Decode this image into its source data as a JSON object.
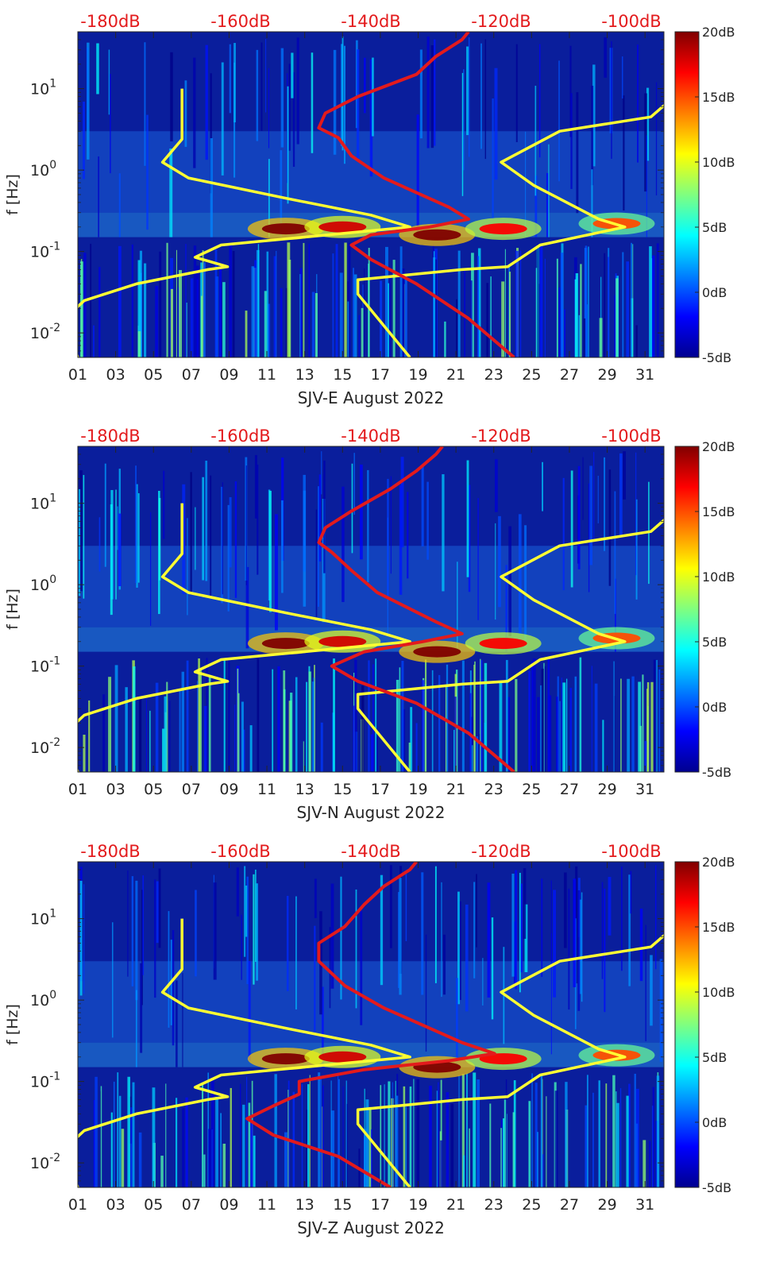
{
  "colors": {
    "noise_model": "#ffff33",
    "psd_curve": "#e31a1c",
    "background_low": "#0a1e9c",
    "db_top_labels": "#e31a1c"
  },
  "chart_data": [
    {
      "type": "heatmap",
      "title": "",
      "xlabel": "SJV-E August 2022",
      "ylabel": "f [Hz]",
      "x_tick_labels": [
        "01",
        "03",
        "05",
        "07",
        "09",
        "11",
        "13",
        "15",
        "17",
        "19",
        "21",
        "23",
        "25",
        "27",
        "29",
        "31"
      ],
      "x_tick_values": [
        1,
        3,
        5,
        7,
        9,
        11,
        13,
        15,
        17,
        19,
        21,
        23,
        25,
        27,
        29,
        31
      ],
      "xlim": [
        1,
        32
      ],
      "y_scale": "log",
      "y_tick_labels": [
        {
          "base": "10",
          "exp": "-2"
        },
        {
          "base": "10",
          "exp": "-1"
        },
        {
          "base": "10",
          "exp": "0"
        },
        {
          "base": "10",
          "exp": "1"
        }
      ],
      "y_tick_values": [
        0.01,
        0.1,
        1,
        10
      ],
      "ylim": [
        0.005,
        50
      ],
      "top_db_labels": [
        "-180dB",
        "-160dB",
        "-140dB",
        "-120dB",
        "-100dB"
      ],
      "top_db_values": [
        -180,
        -160,
        -140,
        -120,
        -100
      ],
      "db_axis_range": [
        -185,
        -95
      ],
      "colorbar": {
        "labels": [
          "20dB",
          "15dB",
          "10dB",
          "5dB",
          "0dB",
          "-5dB"
        ],
        "values": [
          20,
          15,
          10,
          5,
          0,
          -5
        ],
        "range": [
          -5,
          20
        ]
      },
      "series": [
        {
          "name": "noise model (yellow)",
          "points": [
            [
              -185,
              0.005
            ],
            [
              -187,
              0.015
            ],
            [
              -184,
              0.025
            ],
            [
              -176,
              0.04
            ],
            [
              -165,
              0.06
            ],
            [
              -162,
              0.065
            ],
            [
              -167,
              0.085
            ],
            [
              -163,
              0.12
            ],
            [
              -134,
              0.2
            ],
            [
              -140,
              0.28
            ],
            [
              -153,
              0.45
            ],
            [
              -168,
              0.8
            ],
            [
              -172,
              1.25
            ],
            [
              -169,
              2.4
            ],
            [
              -169,
              10
            ]
          ]
        },
        {
          "name": "noise model (yellow, high)",
          "points": [
            [
              -134,
              0.005
            ],
            [
              -142,
              0.03
            ],
            [
              -142,
              0.045
            ],
            [
              -126,
              0.06
            ],
            [
              -119,
              0.065
            ],
            [
              -114,
              0.12
            ],
            [
              -101,
              0.2
            ],
            [
              -105,
              0.25
            ],
            [
              -115,
              0.65
            ],
            [
              -120,
              1.25
            ],
            [
              -111,
              3
            ],
            [
              -97,
              4.5
            ],
            [
              -92,
              10
            ]
          ]
        },
        {
          "name": "PSD (red)",
          "points": [
            [
              -118,
              0.005
            ],
            [
              -125,
              0.015
            ],
            [
              -133,
              0.04
            ],
            [
              -140,
              0.08
            ],
            [
              -143,
              0.12
            ],
            [
              -140,
              0.16
            ],
            [
              -131,
              0.2
            ],
            [
              -125,
              0.25
            ],
            [
              -128,
              0.35
            ],
            [
              -138,
              0.8
            ],
            [
              -143,
              1.5
            ],
            [
              -145,
              2.5
            ],
            [
              -148,
              3.3
            ],
            [
              -147,
              5
            ],
            [
              -142,
              8
            ],
            [
              -133,
              15
            ],
            [
              -130,
              25
            ],
            [
              -126,
              40
            ],
            [
              -125,
              50
            ]
          ]
        }
      ],
      "hotspots_db": [
        {
          "day": 12,
          "f": 0.19,
          "db": 20
        },
        {
          "day": 15,
          "f": 0.2,
          "db": 18
        },
        {
          "day": 20,
          "f": 0.16,
          "db": 20
        },
        {
          "day": 23.5,
          "f": 0.19,
          "db": 17
        },
        {
          "day": 29.5,
          "f": 0.22,
          "db": 15
        }
      ]
    },
    {
      "type": "heatmap",
      "title": "",
      "xlabel": "SJV-N August 2022",
      "ylabel": "f [Hz]",
      "x_tick_labels": [
        "01",
        "03",
        "05",
        "07",
        "09",
        "11",
        "13",
        "15",
        "17",
        "19",
        "21",
        "23",
        "25",
        "27",
        "29",
        "31"
      ],
      "x_tick_values": [
        1,
        3,
        5,
        7,
        9,
        11,
        13,
        15,
        17,
        19,
        21,
        23,
        25,
        27,
        29,
        31
      ],
      "xlim": [
        1,
        32
      ],
      "y_scale": "log",
      "y_tick_labels": [
        {
          "base": "10",
          "exp": "-2"
        },
        {
          "base": "10",
          "exp": "-1"
        },
        {
          "base": "10",
          "exp": "0"
        },
        {
          "base": "10",
          "exp": "1"
        }
      ],
      "y_tick_values": [
        0.01,
        0.1,
        1,
        10
      ],
      "ylim": [
        0.005,
        50
      ],
      "top_db_labels": [
        "-180dB",
        "-160dB",
        "-140dB",
        "-120dB",
        "-100dB"
      ],
      "top_db_values": [
        -180,
        -160,
        -140,
        -120,
        -100
      ],
      "db_axis_range": [
        -185,
        -95
      ],
      "colorbar": {
        "labels": [
          "20dB",
          "15dB",
          "10dB",
          "5dB",
          "0dB",
          "-5dB"
        ],
        "values": [
          20,
          15,
          10,
          5,
          0,
          -5
        ],
        "range": [
          -5,
          20
        ]
      },
      "series": [
        {
          "name": "noise model (yellow)",
          "points": [
            [
              -185,
              0.005
            ],
            [
              -187,
              0.015
            ],
            [
              -184,
              0.025
            ],
            [
              -176,
              0.04
            ],
            [
              -165,
              0.06
            ],
            [
              -162,
              0.065
            ],
            [
              -167,
              0.085
            ],
            [
              -163,
              0.12
            ],
            [
              -134,
              0.2
            ],
            [
              -140,
              0.28
            ],
            [
              -153,
              0.45
            ],
            [
              -168,
              0.8
            ],
            [
              -172,
              1.25
            ],
            [
              -169,
              2.4
            ],
            [
              -169,
              10
            ]
          ]
        },
        {
          "name": "noise model (yellow, high)",
          "points": [
            [
              -134,
              0.005
            ],
            [
              -142,
              0.03
            ],
            [
              -142,
              0.045
            ],
            [
              -126,
              0.06
            ],
            [
              -119,
              0.065
            ],
            [
              -114,
              0.12
            ],
            [
              -101,
              0.2
            ],
            [
              -105,
              0.25
            ],
            [
              -115,
              0.65
            ],
            [
              -120,
              1.25
            ],
            [
              -111,
              3
            ],
            [
              -97,
              4.5
            ],
            [
              -92,
              10
            ]
          ]
        },
        {
          "name": "PSD (red)",
          "points": [
            [
              -118,
              0.005
            ],
            [
              -125,
              0.015
            ],
            [
              -133,
              0.035
            ],
            [
              -142,
              0.065
            ],
            [
              -146,
              0.1
            ],
            [
              -141,
              0.15
            ],
            [
              -132,
              0.2
            ],
            [
              -126,
              0.25
            ],
            [
              -130,
              0.35
            ],
            [
              -139,
              0.8
            ],
            [
              -143,
              1.5
            ],
            [
              -146,
              2.5
            ],
            [
              -148,
              3.3
            ],
            [
              -147,
              5
            ],
            [
              -143,
              8
            ],
            [
              -137,
              15
            ],
            [
              -133,
              25
            ],
            [
              -130,
              40
            ],
            [
              -129,
              50
            ]
          ]
        }
      ],
      "hotspots_db": [
        {
          "day": 12,
          "f": 0.19,
          "db": 20
        },
        {
          "day": 15,
          "f": 0.2,
          "db": 18
        },
        {
          "day": 20,
          "f": 0.15,
          "db": 20
        },
        {
          "day": 23.5,
          "f": 0.19,
          "db": 17
        },
        {
          "day": 29.5,
          "f": 0.22,
          "db": 15
        }
      ]
    },
    {
      "type": "heatmap",
      "title": "",
      "xlabel": "SJV-Z August 2022",
      "ylabel": "f [Hz]",
      "x_tick_labels": [
        "01",
        "03",
        "05",
        "07",
        "09",
        "11",
        "13",
        "15",
        "17",
        "19",
        "21",
        "23",
        "25",
        "27",
        "29",
        "31"
      ],
      "x_tick_values": [
        1,
        3,
        5,
        7,
        9,
        11,
        13,
        15,
        17,
        19,
        21,
        23,
        25,
        27,
        29,
        31
      ],
      "xlim": [
        1,
        32
      ],
      "y_scale": "log",
      "y_tick_labels": [
        {
          "base": "10",
          "exp": "-2"
        },
        {
          "base": "10",
          "exp": "-1"
        },
        {
          "base": "10",
          "exp": "0"
        },
        {
          "base": "10",
          "exp": "1"
        }
      ],
      "y_tick_values": [
        0.01,
        0.1,
        1,
        10
      ],
      "ylim": [
        0.005,
        50
      ],
      "top_db_labels": [
        "-180dB",
        "-160dB",
        "-140dB",
        "-120dB",
        "-100dB"
      ],
      "top_db_values": [
        -180,
        -160,
        -140,
        -120,
        -100
      ],
      "db_axis_range": [
        -185,
        -95
      ],
      "colorbar": {
        "labels": [
          "20dB",
          "15dB",
          "10dB",
          "5dB",
          "0dB",
          "-5dB"
        ],
        "values": [
          20,
          15,
          10,
          5,
          0,
          -5
        ],
        "range": [
          -5,
          20
        ]
      },
      "series": [
        {
          "name": "noise model (yellow)",
          "points": [
            [
              -185,
              0.005
            ],
            [
              -187,
              0.015
            ],
            [
              -184,
              0.025
            ],
            [
              -176,
              0.04
            ],
            [
              -165,
              0.06
            ],
            [
              -162,
              0.065
            ],
            [
              -167,
              0.085
            ],
            [
              -163,
              0.12
            ],
            [
              -134,
              0.2
            ],
            [
              -140,
              0.28
            ],
            [
              -153,
              0.45
            ],
            [
              -168,
              0.8
            ],
            [
              -172,
              1.25
            ],
            [
              -169,
              2.4
            ],
            [
              -169,
              10
            ]
          ]
        },
        {
          "name": "noise model (yellow, high)",
          "points": [
            [
              -134,
              0.005
            ],
            [
              -142,
              0.03
            ],
            [
              -142,
              0.045
            ],
            [
              -126,
              0.06
            ],
            [
              -119,
              0.065
            ],
            [
              -114,
              0.12
            ],
            [
              -101,
              0.2
            ],
            [
              -105,
              0.25
            ],
            [
              -115,
              0.65
            ],
            [
              -120,
              1.25
            ],
            [
              -111,
              3
            ],
            [
              -97,
              4.5
            ],
            [
              -92,
              10
            ]
          ]
        },
        {
          "name": "PSD (red)",
          "points": [
            [
              -137,
              0.005
            ],
            [
              -145,
              0.012
            ],
            [
              -155,
              0.022
            ],
            [
              -159,
              0.035
            ],
            [
              -155,
              0.05
            ],
            [
              -151,
              0.07
            ],
            [
              -151,
              0.1
            ],
            [
              -141,
              0.14
            ],
            [
              -128,
              0.18
            ],
            [
              -121,
              0.22
            ],
            [
              -126,
              0.3
            ],
            [
              -138,
              0.8
            ],
            [
              -144,
              1.5
            ],
            [
              -148,
              3
            ],
            [
              -148,
              5
            ],
            [
              -144,
              8
            ],
            [
              -141,
              15
            ],
            [
              -138,
              25
            ],
            [
              -134,
              40
            ],
            [
              -133,
              50
            ]
          ]
        }
      ],
      "hotspots_db": [
        {
          "day": 12,
          "f": 0.19,
          "db": 20
        },
        {
          "day": 15,
          "f": 0.2,
          "db": 18
        },
        {
          "day": 20,
          "f": 0.15,
          "db": 20
        },
        {
          "day": 23.5,
          "f": 0.19,
          "db": 17
        },
        {
          "day": 29.5,
          "f": 0.21,
          "db": 15
        }
      ]
    }
  ]
}
